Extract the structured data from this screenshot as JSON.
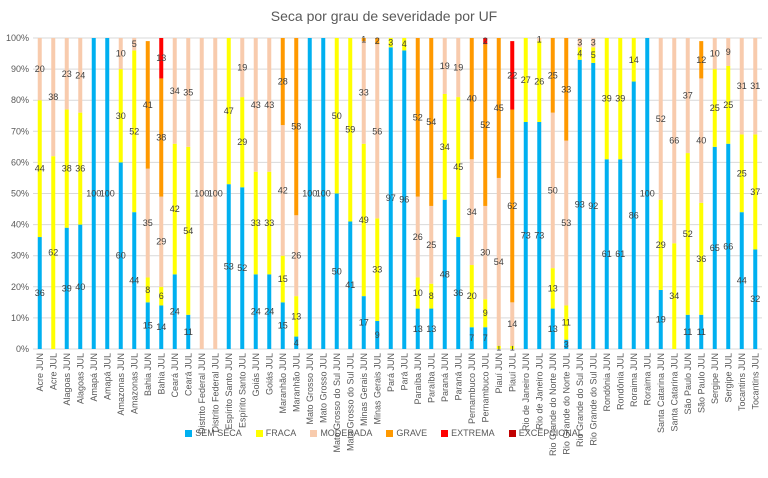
{
  "chart_data": {
    "type": "bar",
    "stacked": true,
    "title": "Seca por grau de severidade por UF",
    "xlabel": "",
    "ylabel": "",
    "ylim": [
      0,
      100
    ],
    "yticks": [
      "0%",
      "10%",
      "20%",
      "30%",
      "40%",
      "50%",
      "60%",
      "70%",
      "80%",
      "90%",
      "100%"
    ],
    "grid": true,
    "legend_position": "bottom",
    "categories": [
      "Acre JUN",
      "Acre JUL",
      "Alagoas JUN",
      "Alagoas JUL",
      "Amapá JUN",
      "Amapá JUL",
      "Amazonas JUN",
      "Amazonas JUL",
      "Bahia JUN",
      "Bahia JUL",
      "Ceará JUN",
      "Ceará JUL",
      "Distrito Federal JUN",
      "Distrito Federal JUL",
      "Espírito Santo JUN",
      "Espírito Santo JUL",
      "Goiás JUN",
      "Goiás JUL",
      "Maranhão JUN",
      "Maranhão JUL",
      "Mato Grosso JUN",
      "Mato Grosso JUL",
      "Mato Grosso do Sul JUN",
      "Mato Grosso do Sul JUL",
      "Minas Gerais JUN",
      "Minas Gerais JUL",
      "Pará JUN",
      "Pará JUL",
      "Paraíba JUN",
      "Paraíba JUL",
      "Paraná JUN",
      "Paraná JUL",
      "Pernambuco JUN",
      "Pernambuco JUL",
      "Piauí JUN",
      "Piauí JUL",
      "Rio de Janeiro JUN",
      "Rio de Janeiro JUL",
      "Rio Grande do Norte JUN",
      "Rio Grande do Norte JUL",
      "Rio Grande do Sul JUN",
      "Rio Grande do Sul JUL",
      "Rondônia JUN",
      "Rondônia JUL",
      "Roraima JUN",
      "Roraima JUL",
      "Santa Catarina JUN",
      "Santa Catarina JUL",
      "São Paulo JUN",
      "São Paulo JUL",
      "Sergipe JUN",
      "Sergipe JUL",
      "Tocantins JUN",
      "Tocantins JUL"
    ],
    "series": [
      {
        "name": "SEM SECA",
        "color": "#00B0F0",
        "values": [
          36,
          0,
          39,
          40,
          100,
          100,
          60,
          44,
          15,
          14,
          24,
          11,
          0,
          0,
          53,
          52,
          24,
          24,
          15,
          4,
          100,
          100,
          50,
          41,
          17,
          9,
          97,
          96,
          13,
          13,
          48,
          36,
          7,
          7,
          0,
          0,
          73,
          73,
          13,
          3,
          93,
          92,
          61,
          61,
          86,
          100,
          19,
          0,
          11,
          11,
          65,
          66,
          44,
          32
        ]
      },
      {
        "name": "FRACA",
        "color": "#FFFF00",
        "values": [
          44,
          62,
          38,
          36,
          0,
          0,
          30,
          52,
          8,
          6,
          42,
          54,
          0,
          0,
          47,
          29,
          33,
          33,
          15,
          13,
          0,
          0,
          50,
          59,
          49,
          33,
          3,
          4,
          10,
          8,
          34,
          45,
          20,
          9,
          1,
          1,
          27,
          26,
          13,
          11,
          4,
          5,
          39,
          39,
          14,
          0,
          29,
          34,
          52,
          36,
          25,
          25,
          25,
          37
        ]
      },
      {
        "name": "MODERADA",
        "color": "#F8CBAD",
        "values": [
          20,
          38,
          23,
          24,
          0,
          0,
          10,
          5,
          35,
          29,
          34,
          35,
          100,
          100,
          0,
          19,
          43,
          43,
          42,
          26,
          0,
          0,
          0,
          0,
          33,
          56,
          0,
          0,
          26,
          25,
          19,
          19,
          34,
          30,
          54,
          14,
          0,
          1,
          50,
          53,
          3,
          3,
          0,
          0,
          0,
          0,
          52,
          66,
          37,
          40,
          10,
          9,
          31,
          31
        ]
      },
      {
        "name": "GRAVE",
        "color": "#FF9900",
        "values": [
          0,
          0,
          0,
          0,
          0,
          0,
          0,
          0,
          41,
          38,
          0,
          0,
          0,
          0,
          0,
          0,
          0,
          0,
          28,
          58,
          0,
          0,
          0,
          0,
          1,
          2,
          0,
          0,
          52,
          54,
          0,
          0,
          40,
          52,
          45,
          62,
          0,
          0,
          25,
          33,
          0,
          0,
          0,
          0,
          0,
          0,
          0,
          0,
          0,
          12,
          0,
          0,
          0,
          0
        ]
      },
      {
        "name": "EXTREMA",
        "color": "#FF0000",
        "values": [
          0,
          0,
          0,
          0,
          0,
          0,
          0,
          0,
          0,
          13,
          0,
          0,
          0,
          0,
          0,
          0,
          0,
          0,
          0,
          0,
          0,
          0,
          0,
          0,
          0,
          0,
          0,
          0,
          0,
          0,
          0,
          0,
          0,
          2,
          0,
          22,
          0,
          0,
          0,
          0,
          0,
          0,
          0,
          0,
          0,
          0,
          0,
          0,
          0,
          0,
          0,
          0,
          0,
          0
        ]
      },
      {
        "name": "EXCEPCIONAL",
        "color": "#C00000",
        "values": [
          0,
          0,
          0,
          0,
          0,
          0,
          0,
          0,
          0,
          0,
          0,
          0,
          0,
          0,
          0,
          0,
          0,
          0,
          0,
          0,
          0,
          0,
          0,
          0,
          0,
          0,
          0,
          0,
          0,
          0,
          0,
          0,
          0,
          0,
          0,
          0,
          0,
          0,
          0,
          0,
          0,
          0,
          0,
          0,
          0,
          0,
          0,
          0,
          0,
          0,
          0,
          0,
          0,
          0
        ]
      }
    ]
  }
}
